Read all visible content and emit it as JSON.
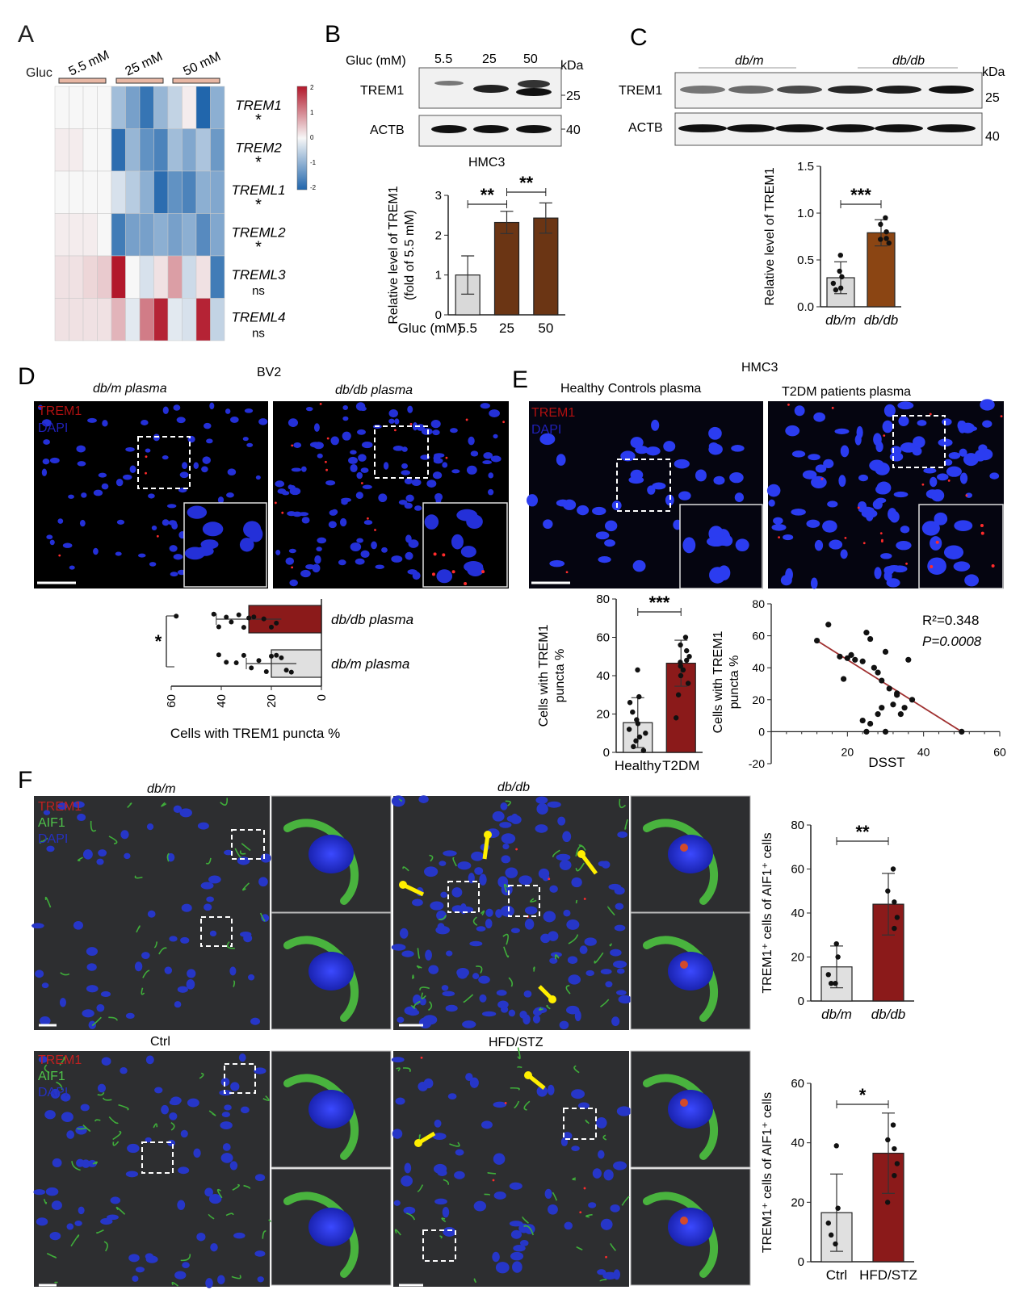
{
  "panels": {
    "A": {
      "letter": "A",
      "gluc_label": "Gluc",
      "groups": [
        "5.5 mM",
        "25 mM",
        "50 mM"
      ],
      "genes": [
        "TREM1",
        "TREM2",
        "TREML1",
        "TREML2",
        "TREML3",
        "TREML4"
      ],
      "significance": [
        "*",
        "*",
        "*",
        "*",
        "ns",
        "ns"
      ],
      "colorbar_ticks": [
        "2",
        "1",
        "0",
        "-1",
        "-2"
      ],
      "colors": {
        "high": "#b2182b",
        "mid": "#f7f7f7",
        "low": "#2166ac"
      }
    },
    "B": {
      "letter": "B",
      "blot_header": "Gluc (mM)",
      "lanes": [
        "5.5",
        "25",
        "50"
      ],
      "kda_label": "kDa",
      "rows": [
        "TREM1",
        "ACTB"
      ],
      "kda_marks": [
        "25",
        "40"
      ],
      "cell_line": "HMC3"
    },
    "C": {
      "letter": "C",
      "groups": [
        "db/m",
        "db/db"
      ],
      "kda_label": "kDa",
      "rows": [
        "TREM1",
        "ACTB"
      ],
      "kda_marks": [
        "25",
        "40"
      ]
    },
    "D": {
      "letter": "D",
      "cell_line": "BV2",
      "image_titles": [
        "db/m plasma",
        "db/db plasma"
      ],
      "channels": [
        "TREM1",
        "DAPI"
      ]
    },
    "E": {
      "letter": "E",
      "cell_line": "HMC3",
      "image_titles": [
        "Healthy Controls plasma",
        "T2DM patients plasma"
      ],
      "channels": [
        "TREM1",
        "DAPI"
      ],
      "r2_text": "R²=0.348",
      "p_text": "P=0.0008"
    },
    "F": {
      "letter": "F",
      "row1_titles": [
        "db/m",
        "db/db"
      ],
      "row2_titles": [
        "Ctrl",
        "HFD/STZ"
      ],
      "channels": [
        "TREM1",
        "AIF1",
        "DAPI"
      ]
    }
  },
  "chart_data": [
    {
      "id": "B-bar",
      "type": "bar",
      "categories": [
        "5.5",
        "25",
        "50"
      ],
      "values": [
        1.0,
        2.32,
        2.43
      ],
      "errors": [
        0.48,
        0.28,
        0.38
      ],
      "ylabel": "Relative level of TREM1 (fold of 5.5 mM)",
      "xlabel": "Gluc (mM)",
      "ylim": [
        0,
        3
      ],
      "yticks": [
        "0",
        "1",
        "2",
        "3"
      ],
      "colors": [
        "#d9d9d9",
        "#6b3514",
        "#6b3514"
      ],
      "significance": [
        {
          "from": 0,
          "to": 1,
          "label": "**"
        },
        {
          "from": 1,
          "to": 2,
          "label": "**"
        }
      ]
    },
    {
      "id": "C-bar",
      "type": "bar",
      "categories": [
        "db/m",
        "db/db"
      ],
      "values": [
        0.31,
        0.79
      ],
      "errors": [
        0.17,
        0.14
      ],
      "points": [
        [
          0.55,
          0.32,
          0.25,
          0.18,
          0.38,
          0.2
        ],
        [
          0.95,
          0.88,
          0.73,
          0.68,
          0.8,
          0.72
        ]
      ],
      "ylabel": "Relative level of TREM1",
      "ylim": [
        0,
        1.5
      ],
      "yticks": [
        "0.0",
        "0.5",
        "1.0",
        "1.5"
      ],
      "colors": [
        "#d9d9d9",
        "#8b4513"
      ],
      "significance": [
        {
          "from": 0,
          "to": 1,
          "label": "***"
        }
      ]
    },
    {
      "id": "D-hbar",
      "type": "bar",
      "categories": [
        "db/db plasma",
        "db/m plasma"
      ],
      "values": [
        29,
        20
      ],
      "errors": [
        13,
        10
      ],
      "points": [
        [
          58,
          43,
          41,
          38,
          36,
          33,
          31,
          29,
          27,
          23,
          20,
          18
        ],
        [
          41,
          38,
          34,
          31,
          28,
          25,
          22,
          20,
          18,
          16,
          14,
          12
        ]
      ],
      "xlabel": "Cells with TREM1 puncta %",
      "xlim": [
        0,
        60
      ],
      "xticks": [
        "0",
        "20",
        "40",
        "60"
      ],
      "colors": [
        "#8b1a1a",
        "#e0e0e0"
      ],
      "significance": [
        {
          "from": 0,
          "to": 1,
          "label": "*"
        }
      ]
    },
    {
      "id": "E-bar",
      "type": "bar",
      "categories": [
        "Healthy",
        "T2DM"
      ],
      "values": [
        15.5,
        46.5
      ],
      "errors": [
        13,
        12
      ],
      "points": [
        [
          43,
          29,
          26,
          21,
          17,
          15,
          12,
          10,
          8,
          6,
          3,
          1
        ],
        [
          60,
          56,
          53,
          50,
          48,
          47,
          45,
          43,
          40,
          36,
          30,
          18
        ]
      ],
      "ylabel": "Cells with TREM1 puncta %",
      "ylim": [
        0,
        80
      ],
      "yticks": [
        "0",
        "20",
        "40",
        "60",
        "80"
      ],
      "colors": [
        "#e0e0e0",
        "#8b1a1a"
      ],
      "significance": [
        {
          "from": 0,
          "to": 1,
          "label": "***"
        }
      ]
    },
    {
      "id": "E-scatter",
      "type": "scatter",
      "x": [
        12,
        15,
        18,
        19,
        20,
        21,
        22,
        24,
        25,
        26,
        27,
        28,
        29,
        30,
        31,
        32,
        33,
        34,
        36,
        37,
        50,
        25,
        26,
        28,
        30,
        33,
        35,
        29,
        24
      ],
      "y": [
        57,
        67,
        47,
        33,
        46,
        48,
        45,
        44,
        62,
        58,
        40,
        37,
        32,
        50,
        27,
        17,
        24,
        11,
        45,
        20,
        0,
        0,
        5,
        11,
        0,
        23,
        15,
        15,
        7
      ],
      "fit": {
        "x": [
          12,
          50
        ],
        "y": [
          57,
          0
        ]
      },
      "xlabel": "DSST",
      "ylabel": "Cells with TREM1 puncta %",
      "xlim": [
        0,
        60
      ],
      "ylim": [
        -20,
        80
      ],
      "xticks": [
        "20",
        "40",
        "60"
      ],
      "yticks": [
        "-20",
        "0",
        "20",
        "40",
        "60",
        "80"
      ],
      "colors": {
        "fit": "#a03030",
        "points": "#111111"
      }
    },
    {
      "id": "F1-bar",
      "type": "bar",
      "categories": [
        "db/m",
        "db/db"
      ],
      "values": [
        15.5,
        44
      ],
      "errors": [
        9.5,
        14
      ],
      "points": [
        [
          26,
          20,
          12,
          8,
          8
        ],
        [
          60,
          50,
          45,
          38,
          33
        ]
      ],
      "ylabel": "TREM1⁺ cells of AIF1⁺ cells",
      "ylim": [
        0,
        80
      ],
      "yticks": [
        "0",
        "20",
        "40",
        "60",
        "80"
      ],
      "colors": [
        "#e0e0e0",
        "#8b1a1a"
      ],
      "significance": [
        {
          "from": 0,
          "to": 1,
          "label": "**"
        }
      ]
    },
    {
      "id": "F2-bar",
      "type": "bar",
      "categories": [
        "Ctrl",
        "HFD/STZ"
      ],
      "values": [
        16.5,
        36.5
      ],
      "errors": [
        13,
        13.5
      ],
      "points": [
        [
          39,
          18,
          13,
          9,
          6
        ],
        [
          46,
          41,
          38,
          33,
          29,
          20
        ]
      ],
      "ylabel": "TREM1⁺ cells of AIF1⁺ cells",
      "ylim": [
        0,
        60
      ],
      "yticks": [
        "0",
        "20",
        "40",
        "60"
      ],
      "colors": [
        "#e0e0e0",
        "#8b1a1a"
      ],
      "significance": [
        {
          "from": 0,
          "to": 1,
          "label": "*"
        }
      ]
    }
  ]
}
